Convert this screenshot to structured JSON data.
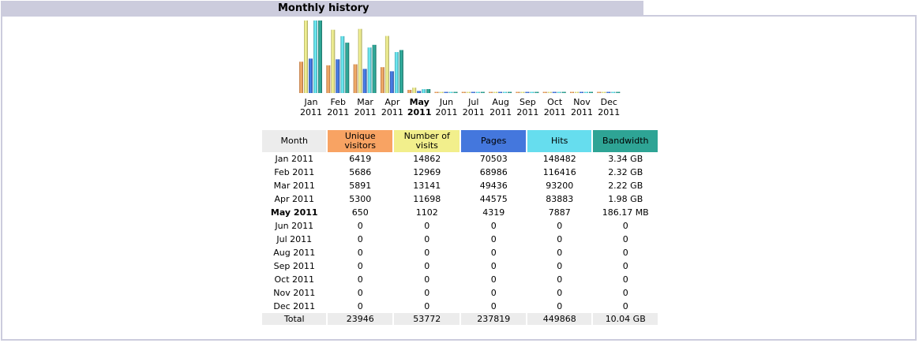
{
  "section": {
    "title": "Monthly history"
  },
  "table": {
    "headers": {
      "month": "Month",
      "unique": [
        "Unique",
        "visitors"
      ],
      "visits": [
        "Number of",
        "visits"
      ],
      "pages": "Pages",
      "hits": "Hits",
      "bandwidth": "Bandwidth"
    },
    "rows": [
      [
        "Jan 2011",
        "6419",
        "14862",
        "70503",
        "148482",
        "3.34 GB"
      ],
      [
        "Feb 2011",
        "5686",
        "12969",
        "68986",
        "116416",
        "2.32 GB"
      ],
      [
        "Mar 2011",
        "5891",
        "13141",
        "49436",
        "93200",
        "2.22 GB"
      ],
      [
        "Apr 2011",
        "5300",
        "11698",
        "44575",
        "83883",
        "1.98 GB"
      ],
      [
        "May 2011",
        "650",
        "1102",
        "4319",
        "7887",
        "186.17 MB"
      ],
      [
        "Jun 2011",
        "0",
        "0",
        "0",
        "0",
        "0"
      ],
      [
        "Jul 2011",
        "0",
        "0",
        "0",
        "0",
        "0"
      ],
      [
        "Aug 2011",
        "0",
        "0",
        "0",
        "0",
        "0"
      ],
      [
        "Sep 2011",
        "0",
        "0",
        "0",
        "0",
        "0"
      ],
      [
        "Oct 2011",
        "0",
        "0",
        "0",
        "0",
        "0"
      ],
      [
        "Nov 2011",
        "0",
        "0",
        "0",
        "0",
        "0"
      ],
      [
        "Dec 2011",
        "0",
        "0",
        "0",
        "0",
        "0"
      ]
    ],
    "total": [
      "Total",
      "23946",
      "53772",
      "237819",
      "449868",
      "10.04 GB"
    ],
    "current_row": 4
  },
  "colors": {
    "unique": "#f8a363",
    "visits": "#f2ef8c",
    "pages": "#4477dd",
    "hits": "#66ddee",
    "bandwidth": "#2ea495",
    "header_bg": "#ccccdd"
  },
  "chart_data": {
    "type": "bar",
    "categories": [
      [
        "Jan",
        "2011"
      ],
      [
        "Feb",
        "2011"
      ],
      [
        "Mar",
        "2011"
      ],
      [
        "Apr",
        "2011"
      ],
      [
        "May",
        "2011"
      ],
      [
        "Jun",
        "2011"
      ],
      [
        "Jul",
        "2011"
      ],
      [
        "Aug",
        "2011"
      ],
      [
        "Sep",
        "2011"
      ],
      [
        "Oct",
        "2011"
      ],
      [
        "Nov",
        "2011"
      ],
      [
        "Dec",
        "2011"
      ]
    ],
    "current_index": 4,
    "series": [
      {
        "key": "unique",
        "values": [
          6419,
          5686,
          5891,
          5300,
          650,
          0,
          0,
          0,
          0,
          0,
          0,
          0
        ]
      },
      {
        "key": "visits",
        "values": [
          14862,
          12969,
          13141,
          11698,
          1102,
          0,
          0,
          0,
          0,
          0,
          0,
          0
        ]
      },
      {
        "key": "pages",
        "values": [
          70503,
          68986,
          49436,
          44575,
          4319,
          0,
          0,
          0,
          0,
          0,
          0,
          0
        ]
      },
      {
        "key": "hits",
        "values": [
          148482,
          116416,
          93200,
          83883,
          7887,
          0,
          0,
          0,
          0,
          0,
          0,
          0
        ]
      },
      {
        "key": "bandwidth",
        "values": [
          3.34,
          2.32,
          2.22,
          1.98,
          0.182,
          0,
          0,
          0,
          0,
          0,
          0,
          0
        ]
      }
    ]
  }
}
